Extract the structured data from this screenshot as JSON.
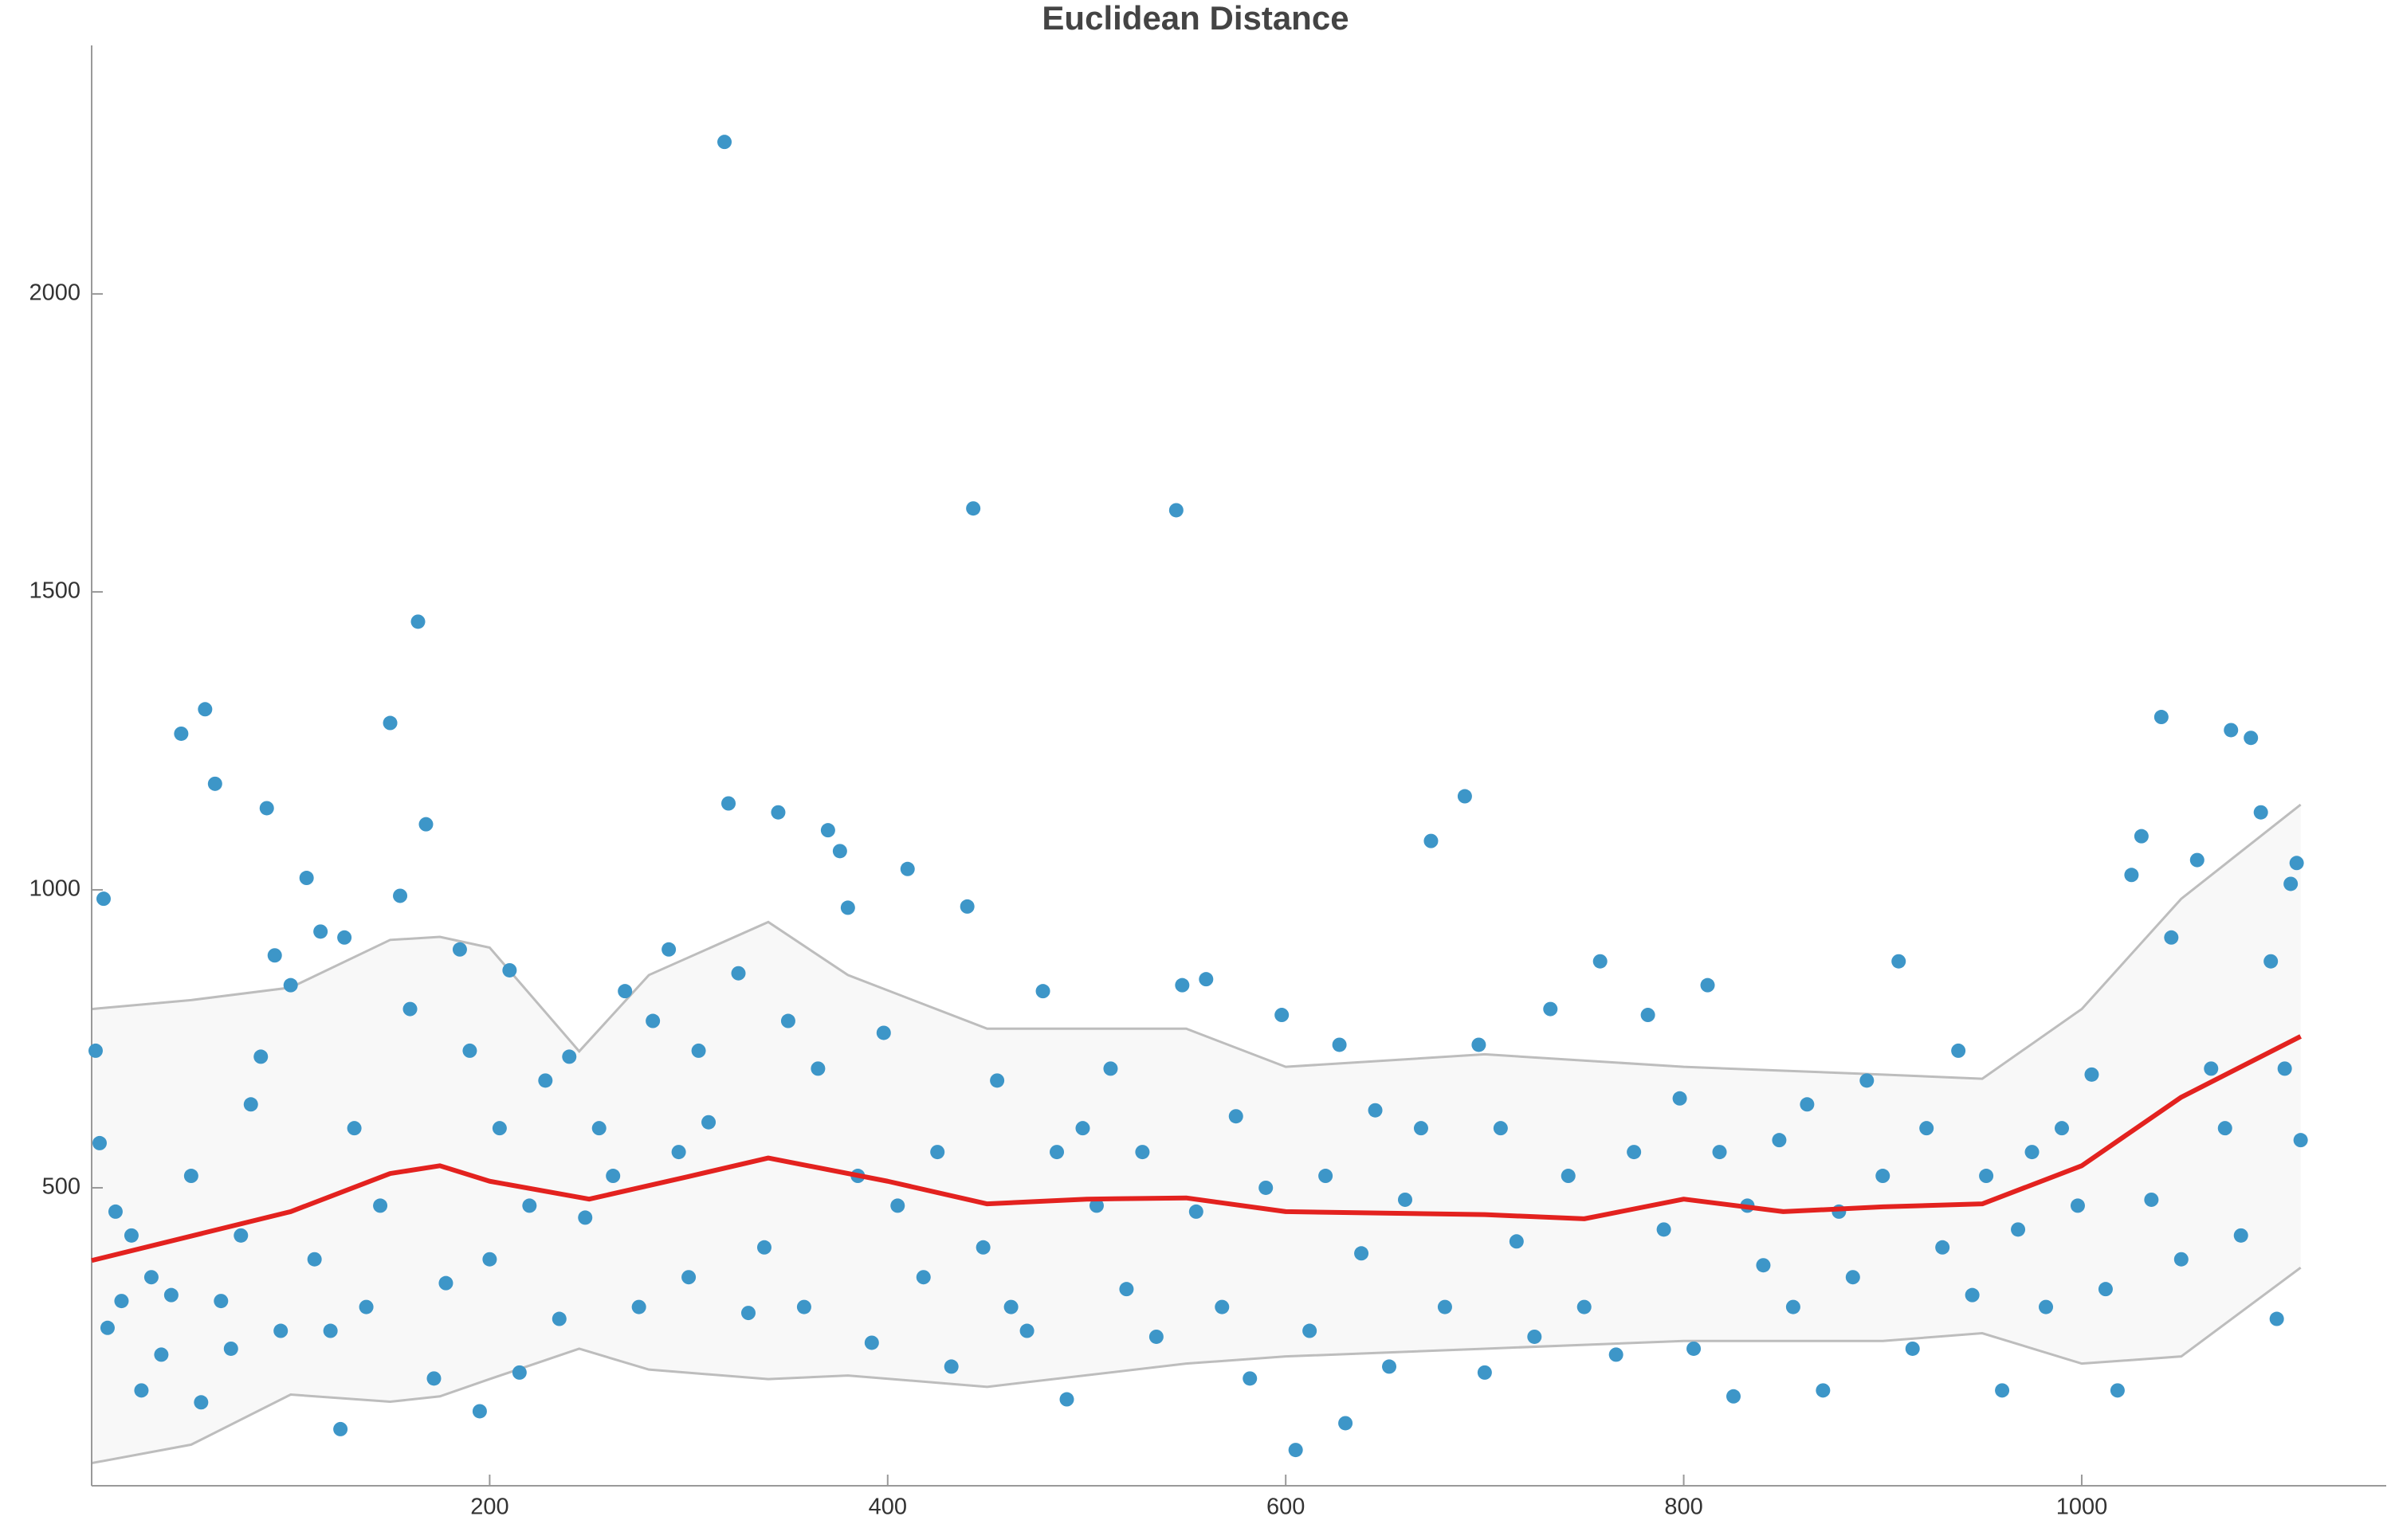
{
  "chart_data": {
    "type": "scatter",
    "title": "Euclidean Distance",
    "xlim": [
      0,
      1153
    ],
    "ylim": [
      0,
      2417
    ],
    "xticks": [
      200,
      400,
      600,
      800,
      1000
    ],
    "yticks": [
      500,
      1000,
      1500,
      2000
    ],
    "points": {
      "color": "#3d96c8",
      "x": [
        2,
        4,
        6,
        8,
        12,
        15,
        20,
        25,
        30,
        35,
        40,
        45,
        50,
        55,
        57,
        62,
        65,
        70,
        75,
        80,
        85,
        88,
        92,
        95,
        100,
        108,
        112,
        115,
        120,
        125,
        127,
        132,
        138,
        145,
        150,
        155,
        160,
        164,
        168,
        172,
        178,
        185,
        190,
        195,
        200,
        205,
        210,
        215,
        220,
        228,
        235,
        240,
        248,
        255,
        262,
        268,
        275,
        282,
        290,
        295,
        300,
        305,
        310,
        318,
        320,
        325,
        330,
        338,
        345,
        350,
        358,
        365,
        370,
        376,
        380,
        385,
        392,
        398,
        405,
        410,
        418,
        425,
        432,
        440,
        443,
        448,
        455,
        462,
        470,
        478,
        485,
        490,
        498,
        505,
        512,
        520,
        528,
        535,
        545,
        548,
        555,
        560,
        568,
        575,
        582,
        590,
        598,
        605,
        612,
        620,
        627,
        630,
        638,
        645,
        652,
        660,
        668,
        673,
        680,
        690,
        697,
        700,
        708,
        716,
        725,
        733,
        742,
        750,
        758,
        766,
        775,
        782,
        790,
        798,
        805,
        812,
        818,
        825,
        832,
        840,
        848,
        855,
        862,
        870,
        878,
        885,
        892,
        900,
        908,
        915,
        922,
        930,
        938,
        945,
        952,
        960,
        968,
        975,
        982,
        990,
        998,
        1005,
        1012,
        1018,
        1025,
        1030,
        1035,
        1040,
        1045,
        1050,
        1058,
        1065,
        1072,
        1075,
        1080,
        1085,
        1090,
        1095,
        1098,
        1102,
        1105,
        1108,
        1110
      ],
      "values": [
        730,
        575,
        985,
        265,
        460,
        310,
        420,
        160,
        350,
        220,
        320,
        1262,
        520,
        140,
        1303,
        1178,
        310,
        230,
        420,
        640,
        720,
        1137,
        890,
        260,
        840,
        1020,
        380,
        930,
        260,
        95,
        920,
        600,
        300,
        470,
        1280,
        990,
        800,
        1450,
        1110,
        180,
        340,
        900,
        730,
        125,
        380,
        600,
        865,
        190,
        470,
        680,
        280,
        720,
        450,
        600,
        520,
        830,
        300,
        780,
        900,
        560,
        350,
        730,
        610,
        2255,
        1145,
        860,
        290,
        400,
        1130,
        780,
        300,
        700,
        1100,
        1065,
        970,
        520,
        240,
        760,
        470,
        1035,
        350,
        560,
        200,
        972,
        1640,
        400,
        680,
        300,
        260,
        830,
        560,
        145,
        600,
        470,
        700,
        330,
        560,
        250,
        1637,
        840,
        460,
        850,
        300,
        620,
        180,
        500,
        790,
        60,
        260,
        520,
        740,
        105,
        390,
        630,
        200,
        480,
        600,
        1082,
        300,
        1157,
        740,
        190,
        600,
        410,
        250,
        800,
        520,
        300,
        880,
        220,
        560,
        790,
        430,
        650,
        230,
        840,
        560,
        150,
        470,
        370,
        580,
        300,
        640,
        160,
        460,
        350,
        680,
        520,
        880,
        230,
        600,
        400,
        730,
        320,
        520,
        160,
        430,
        560,
        300,
        600,
        470,
        690,
        330,
        160,
        1025,
        1090,
        480,
        1290,
        920,
        380,
        1050,
        700,
        600,
        1268,
        420,
        1255,
        1130,
        880,
        280,
        700,
        1010,
        1045,
        580
      ]
    },
    "trend": {
      "color": "#e3221f",
      "x": [
        0,
        100,
        150,
        175,
        200,
        250,
        300,
        340,
        400,
        450,
        500,
        550,
        600,
        700,
        750,
        800,
        850,
        900,
        950,
        1000,
        1050,
        1110
      ],
      "values": [
        378,
        460,
        524,
        537,
        511,
        481,
        519,
        550,
        511,
        473,
        481,
        483,
        460,
        455,
        448,
        481,
        460,
        468,
        473,
        537,
        652,
        754
      ]
    },
    "band": {
      "color": "#bdbdbd",
      "fill": "#f8f8f8",
      "x": [
        0,
        50,
        100,
        150,
        175,
        200,
        245,
        280,
        340,
        380,
        450,
        550,
        600,
        700,
        800,
        900,
        950,
        1000,
        1050,
        1110
      ],
      "upper": [
        800,
        815,
        836,
        916,
        921,
        903,
        729,
        857,
        946,
        857,
        767,
        767,
        703,
        724,
        703,
        690,
        683,
        800,
        985,
        1143
      ],
      "lower": [
        38,
        69,
        153,
        141,
        150,
        179,
        230,
        195,
        179,
        185,
        166,
        205,
        217,
        230,
        243,
        243,
        256,
        205,
        217,
        366
      ]
    }
  }
}
